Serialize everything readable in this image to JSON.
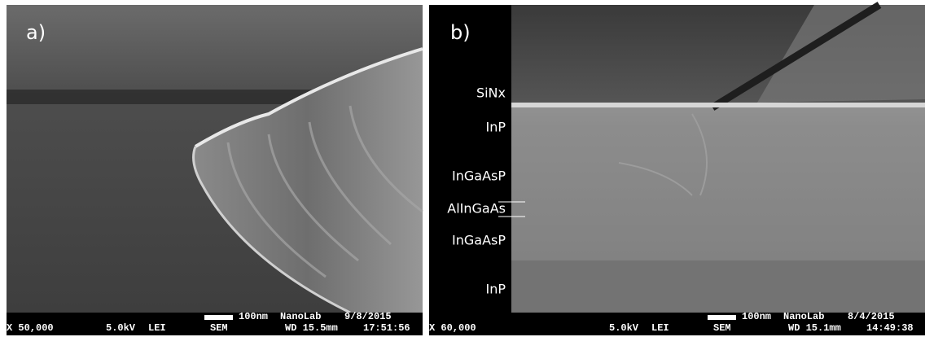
{
  "panels": [
    {
      "label": "a)",
      "layers": [],
      "info": {
        "magnification": "X 50,000",
        "voltage": "5.0kV",
        "detector": "LEI",
        "mode": "SEM",
        "wd": "WD 15.5mm",
        "time": "17:51:56",
        "scale": "100nm",
        "lab": "NanoLab",
        "date": "9/8/2015"
      }
    },
    {
      "label": "b)",
      "layers": [
        "SiNx",
        "InP",
        "InGaAsP",
        "AlInGaAs",
        "InGaAsP",
        "InP"
      ],
      "info": {
        "magnification": "X 60,000",
        "voltage": "5.0kV",
        "detector": "LEI",
        "mode": "SEM",
        "wd": "WD 15.1mm",
        "time": "14:49:38",
        "scale": "100nm",
        "lab": "NanoLab",
        "date": "8/4/2015"
      }
    }
  ]
}
